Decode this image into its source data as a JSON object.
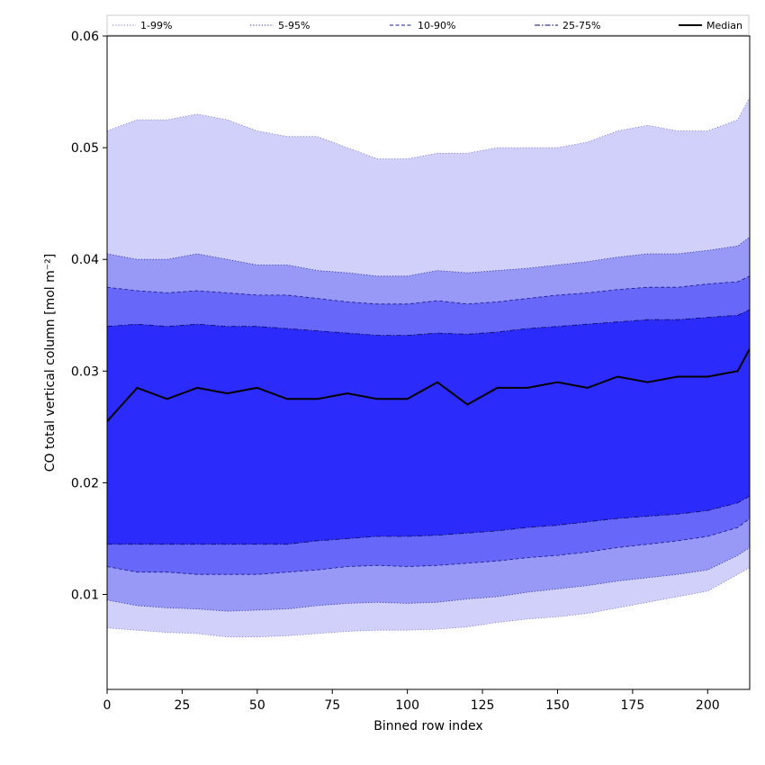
{
  "chart_data": {
    "type": "area",
    "title": "",
    "xlabel": "Binned row index",
    "ylabel": "CO total vertical column [mol m⁻²]",
    "xlim": [
      0,
      214
    ],
    "ylim": [
      0.0015,
      0.06
    ],
    "xticks": [
      0,
      25,
      50,
      75,
      100,
      125,
      150,
      175,
      200
    ],
    "xtick_labels": [
      "0",
      "25",
      "50",
      "75",
      "100",
      "125",
      "150",
      "175",
      "200"
    ],
    "yticks": [
      0.01,
      0.02,
      0.03,
      0.04,
      0.05,
      0.06
    ],
    "ytick_labels": [
      "0.01",
      "0.02",
      "0.03",
      "0.04",
      "0.05",
      "0.06"
    ],
    "grid": false,
    "legend_position": "top, spanning full width",
    "x": [
      0,
      10,
      20,
      30,
      40,
      50,
      60,
      70,
      80,
      90,
      100,
      110,
      120,
      130,
      140,
      150,
      160,
      170,
      180,
      190,
      200,
      210,
      214
    ],
    "series": [
      {
        "name": "1-99%",
        "kind": "band",
        "fill": "#d0d0fb",
        "line_style": "dotted",
        "line_color": "#7777cc",
        "lower": [
          0.007,
          0.0068,
          0.0066,
          0.0065,
          0.0062,
          0.0062,
          0.0063,
          0.0065,
          0.0067,
          0.0068,
          0.0068,
          0.0069,
          0.0071,
          0.0075,
          0.0078,
          0.008,
          0.0083,
          0.0088,
          0.0093,
          0.0098,
          0.0103,
          0.0118,
          0.0124
        ],
        "upper": [
          0.0515,
          0.0525,
          0.0525,
          0.053,
          0.0525,
          0.0515,
          0.051,
          0.051,
          0.05,
          0.049,
          0.049,
          0.0495,
          0.0495,
          0.05,
          0.05,
          0.05,
          0.0505,
          0.0515,
          0.052,
          0.0515,
          0.0515,
          0.0525,
          0.0545
        ]
      },
      {
        "name": "5-95%",
        "kind": "band",
        "fill": "#9898f6",
        "line_style": "dotted",
        "line_color": "#2a2a99",
        "lower": [
          0.0095,
          0.009,
          0.0088,
          0.0087,
          0.0085,
          0.0086,
          0.0087,
          0.009,
          0.0092,
          0.0093,
          0.0092,
          0.0093,
          0.0096,
          0.0098,
          0.0102,
          0.0105,
          0.0108,
          0.0112,
          0.0115,
          0.0118,
          0.0122,
          0.0135,
          0.0142
        ],
        "upper": [
          0.0405,
          0.04,
          0.04,
          0.0405,
          0.04,
          0.0395,
          0.0395,
          0.039,
          0.0388,
          0.0385,
          0.0385,
          0.039,
          0.0388,
          0.039,
          0.0392,
          0.0395,
          0.0398,
          0.0402,
          0.0405,
          0.0405,
          0.0408,
          0.0412,
          0.042
        ]
      },
      {
        "name": "10-90%",
        "kind": "band",
        "fill": "#6767f9",
        "line_style": "dashed",
        "line_color": "#1a1a88",
        "lower": [
          0.0125,
          0.012,
          0.012,
          0.0118,
          0.0118,
          0.0118,
          0.012,
          0.0122,
          0.0125,
          0.0126,
          0.0125,
          0.0126,
          0.0128,
          0.013,
          0.0133,
          0.0135,
          0.0138,
          0.0142,
          0.0145,
          0.0148,
          0.0152,
          0.016,
          0.0168
        ],
        "upper": [
          0.0375,
          0.0372,
          0.037,
          0.0372,
          0.037,
          0.0368,
          0.0368,
          0.0365,
          0.0362,
          0.036,
          0.036,
          0.0363,
          0.036,
          0.0362,
          0.0365,
          0.0368,
          0.037,
          0.0373,
          0.0375,
          0.0375,
          0.0378,
          0.038,
          0.0385
        ]
      },
      {
        "name": "25-75%",
        "kind": "band",
        "fill": "#2b2bfc",
        "line_style": "dashdot",
        "line_color": "#0a0a66",
        "lower": [
          0.0145,
          0.0145,
          0.0145,
          0.0145,
          0.0145,
          0.0145,
          0.0145,
          0.0148,
          0.015,
          0.0152,
          0.0152,
          0.0153,
          0.0155,
          0.0157,
          0.016,
          0.0162,
          0.0165,
          0.0168,
          0.017,
          0.0172,
          0.0175,
          0.0182,
          0.0188
        ],
        "upper": [
          0.034,
          0.0342,
          0.034,
          0.0342,
          0.034,
          0.034,
          0.0338,
          0.0336,
          0.0334,
          0.0332,
          0.0332,
          0.0334,
          0.0333,
          0.0335,
          0.0338,
          0.034,
          0.0342,
          0.0344,
          0.0346,
          0.0346,
          0.0348,
          0.035,
          0.0355
        ]
      },
      {
        "name": "Median",
        "kind": "line",
        "color": "#000000",
        "values": [
          0.0255,
          0.0285,
          0.0275,
          0.0285,
          0.028,
          0.0285,
          0.0275,
          0.0275,
          0.028,
          0.0275,
          0.0275,
          0.029,
          0.027,
          0.0285,
          0.0285,
          0.029,
          0.0285,
          0.0295,
          0.029,
          0.0295,
          0.0295,
          0.03,
          0.032
        ]
      }
    ]
  }
}
